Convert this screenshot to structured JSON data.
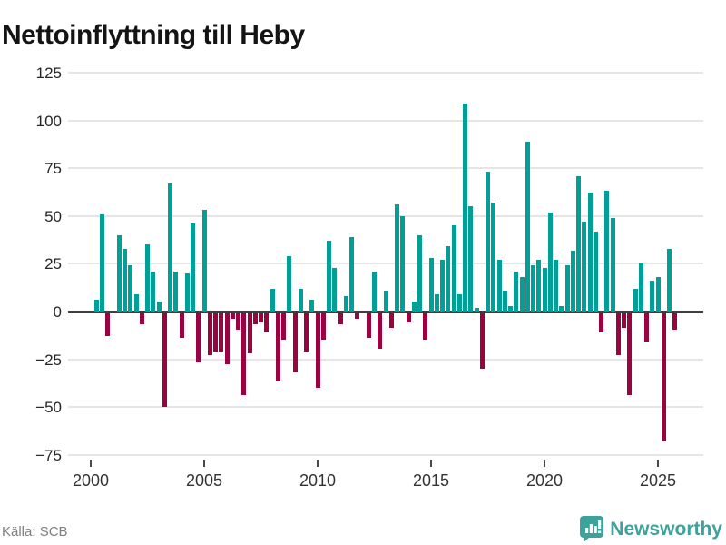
{
  "title": "Nettoinflyttning till Heby",
  "source": {
    "label": "Källa: SCB"
  },
  "brand": {
    "name": "Newsworthy",
    "color": "#3da19c"
  },
  "colors": {
    "positive": "#00a099",
    "negative": "#990440",
    "grid": "#e5e5e5",
    "zero_line": "#3d3d3d",
    "title_text": "#141414",
    "axis_text": "#333333",
    "source_text": "#7f7f7f"
  },
  "chart_data": {
    "type": "bar",
    "title": "Nettoinflyttning till Heby",
    "periodicity": "quarterly",
    "x_start": {
      "year": 2000,
      "quarter": 1
    },
    "x_end": {
      "year": 2025,
      "quarter": 3
    },
    "x_ticks": [
      2000,
      2005,
      2010,
      2015,
      2020,
      2025
    ],
    "y_ticks": [
      125,
      100,
      75,
      50,
      25,
      0,
      -25,
      -50,
      -75
    ],
    "ylim": [
      -75,
      125
    ],
    "grid": true,
    "legend": false,
    "xlabel": "",
    "ylabel": "",
    "series_name": "Nettoinflyttning",
    "values_by_year": {
      "2000": [
        6,
        51,
        -12,
        0
      ],
      "2001": [
        40,
        33,
        24,
        9
      ],
      "2002": [
        -6,
        35,
        21,
        5
      ],
      "2003": [
        -49,
        67,
        21,
        -13
      ],
      "2004": [
        20,
        46,
        -26,
        53
      ],
      "2005": [
        -22,
        -20,
        -20,
        -27
      ],
      "2006": [
        -3,
        -9,
        -43,
        -21
      ],
      "2007": [
        -6,
        -5,
        -10,
        12
      ],
      "2008": [
        -36,
        -14,
        29,
        -31
      ],
      "2009": [
        12,
        -20,
        6,
        -39
      ],
      "2010": [
        -14,
        37,
        23,
        -6
      ],
      "2011": [
        8,
        39,
        -3,
        0
      ],
      "2012": [
        -13,
        21,
        -19,
        11
      ],
      "2013": [
        -8,
        56,
        50,
        -5
      ],
      "2014": [
        5,
        40,
        -14,
        28
      ],
      "2015": [
        9,
        27,
        34,
        45
      ],
      "2016": [
        9,
        109,
        55,
        2
      ],
      "2017": [
        -29,
        73,
        57,
        27
      ],
      "2018": [
        11,
        3,
        21,
        18
      ],
      "2019": [
        89,
        24,
        27,
        23
      ],
      "2020": [
        52,
        27,
        3,
        24
      ],
      "2021": [
        32,
        71,
        47,
        62
      ],
      "2022": [
        42,
        -10,
        63,
        49
      ],
      "2023": [
        -22,
        -8,
        -43,
        12
      ],
      "2024": [
        25,
        -15,
        16,
        18
      ],
      "2025": [
        -67,
        33,
        -9
      ]
    }
  }
}
